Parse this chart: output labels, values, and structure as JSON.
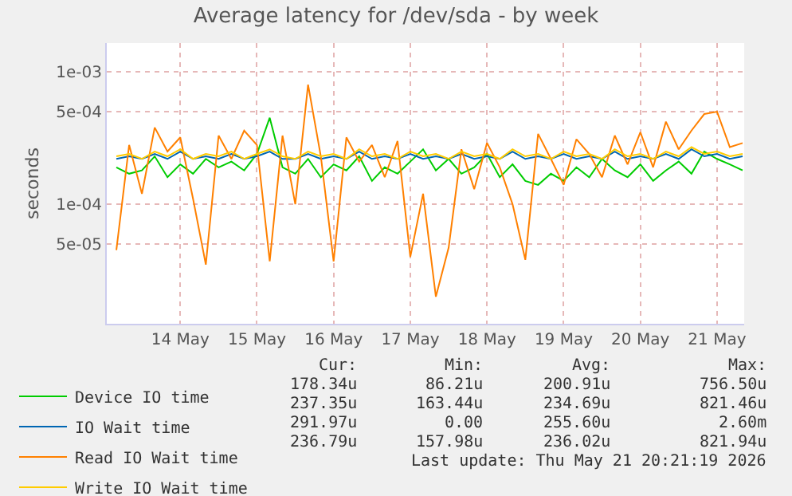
{
  "chart_data": {
    "type": "line",
    "title": "Average latency for /dev/sda - by week",
    "ylabel": "seconds",
    "x": [
      "2026-05-13T16:00",
      "2026-05-13T20:00",
      "2026-05-14T00:00",
      "2026-05-14T04:00",
      "2026-05-14T08:00",
      "2026-05-14T12:00",
      "2026-05-14T16:00",
      "2026-05-14T20:00",
      "2026-05-15T00:00",
      "2026-05-15T04:00",
      "2026-05-15T08:00",
      "2026-05-15T12:00",
      "2026-05-15T16:00",
      "2026-05-15T20:00",
      "2026-05-16T00:00",
      "2026-05-16T04:00",
      "2026-05-16T08:00",
      "2026-05-16T12:00",
      "2026-05-16T16:00",
      "2026-05-16T20:00",
      "2026-05-17T00:00",
      "2026-05-17T04:00",
      "2026-05-17T08:00",
      "2026-05-17T12:00",
      "2026-05-17T16:00",
      "2026-05-17T20:00",
      "2026-05-18T00:00",
      "2026-05-18T04:00",
      "2026-05-18T08:00",
      "2026-05-18T12:00",
      "2026-05-18T16:00",
      "2026-05-18T20:00",
      "2026-05-19T00:00",
      "2026-05-19T04:00",
      "2026-05-19T08:00",
      "2026-05-19T12:00",
      "2026-05-19T16:00",
      "2026-05-19T20:00",
      "2026-05-20T00:00",
      "2026-05-20T04:00",
      "2026-05-20T08:00",
      "2026-05-20T12:00",
      "2026-05-20T16:00",
      "2026-05-20T20:00",
      "2026-05-21T00:00",
      "2026-05-21T04:00",
      "2026-05-21T08:00",
      "2026-05-21T12:00",
      "2026-05-21T16:00",
      "2026-05-21T20:00"
    ],
    "series": [
      {
        "name": "Device IO time",
        "color": "#00cc00",
        "values": [
          0.00019,
          0.00017,
          0.00018,
          0.00023,
          0.00016,
          0.0002,
          0.00017,
          0.00022,
          0.00019,
          0.00021,
          0.00018,
          0.00024,
          0.00045,
          0.00019,
          0.00017,
          0.00022,
          0.00016,
          0.0002,
          0.00018,
          0.00023,
          0.00015,
          0.00019,
          0.00017,
          0.00021,
          0.00026,
          0.00018,
          0.00022,
          0.00017,
          0.00019,
          0.00024,
          0.00016,
          0.0002,
          0.00015,
          0.00014,
          0.00017,
          0.00015,
          0.00019,
          0.00016,
          0.00022,
          0.00018,
          0.00016,
          0.0002,
          0.00015,
          0.00018,
          0.00021,
          0.00017,
          0.00025,
          0.00022,
          0.0002,
          0.00018
        ]
      },
      {
        "name": "IO Wait time",
        "color": "#0066b3",
        "values": [
          0.00022,
          0.00023,
          0.00022,
          0.00024,
          0.00022,
          0.00025,
          0.00022,
          0.00023,
          0.00022,
          0.00024,
          0.00022,
          0.00023,
          0.00025,
          0.00022,
          0.00022,
          0.00024,
          0.00022,
          0.00023,
          0.00022,
          0.00025,
          0.00022,
          0.00023,
          0.00022,
          0.00024,
          0.00022,
          0.00023,
          0.00022,
          0.00024,
          0.00022,
          0.00023,
          0.00022,
          0.00025,
          0.00022,
          0.00023,
          0.00022,
          0.00024,
          0.00022,
          0.00023,
          0.00022,
          0.00025,
          0.00022,
          0.00023,
          0.00022,
          0.00024,
          0.00022,
          0.00026,
          0.00023,
          0.00024,
          0.00022,
          0.00023
        ]
      },
      {
        "name": "Read IO Wait time",
        "color": "#ff8000",
        "values": [
          4.5e-05,
          0.00028,
          0.00012,
          0.00038,
          0.00025,
          0.00032,
          0.00011,
          3.5e-05,
          0.00033,
          0.00022,
          0.00036,
          0.00028,
          3.7e-05,
          0.00033,
          0.0001,
          0.0008,
          0.00023,
          3.7e-05,
          0.00032,
          0.00021,
          0.00028,
          0.00016,
          0.0003,
          4e-05,
          0.00012,
          2e-05,
          4.7e-05,
          0.00026,
          0.00013,
          0.00029,
          0.00019,
          0.0001,
          3.8e-05,
          0.00034,
          0.00022,
          0.00014,
          0.00031,
          0.00024,
          0.00016,
          0.00033,
          0.0002,
          0.00035,
          0.00019,
          0.00042,
          0.00026,
          0.00036,
          0.00048,
          0.0005,
          0.00027,
          0.00029
        ]
      },
      {
        "name": "Write IO Wait time",
        "color": "#ffcc00",
        "values": [
          0.00023,
          0.00024,
          0.00022,
          0.00025,
          0.00023,
          0.00026,
          0.00022,
          0.00024,
          0.00023,
          0.00025,
          0.00022,
          0.00024,
          0.00026,
          0.00023,
          0.00022,
          0.00025,
          0.00023,
          0.00024,
          0.00022,
          0.00026,
          0.00023,
          0.00024,
          0.00022,
          0.00025,
          0.00023,
          0.00024,
          0.00022,
          0.00025,
          0.00023,
          0.00024,
          0.00022,
          0.00026,
          0.00023,
          0.00024,
          0.00022,
          0.00025,
          0.00023,
          0.00024,
          0.00022,
          0.00026,
          0.00023,
          0.00024,
          0.00022,
          0.00025,
          0.00023,
          0.00027,
          0.00024,
          0.00025,
          0.00023,
          0.00024
        ]
      }
    ],
    "log": true,
    "xlim": [
      "2026-05-13T13:00",
      "2026-05-21T20:30"
    ],
    "xticks": [
      {
        "value": "2026-05-14T12:00",
        "label": "14 May"
      },
      {
        "value": "2026-05-15T12:00",
        "label": "15 May"
      },
      {
        "value": "2026-05-16T12:00",
        "label": "16 May"
      },
      {
        "value": "2026-05-17T12:00",
        "label": "17 May"
      },
      {
        "value": "2026-05-18T12:00",
        "label": "18 May"
      },
      {
        "value": "2026-05-19T12:00",
        "label": "19 May"
      },
      {
        "value": "2026-05-20T12:00",
        "label": "20 May"
      },
      {
        "value": "2026-05-21T12:00",
        "label": "21 May"
      }
    ],
    "ylim": [
      1.25e-05,
      0.00165
    ],
    "yticks": [
      {
        "value": 5e-05,
        "label": "5e-05"
      },
      {
        "value": 0.0001,
        "label": "1e-04"
      },
      {
        "value": 0.0005,
        "label": "5e-04"
      },
      {
        "value": 0.001,
        "label": "1e-03"
      }
    ],
    "grid": true,
    "legend": "bottom left",
    "annotations": [
      "Cur:",
      "Min:",
      "Avg:",
      "Max:",
      "178.34u",
      "86.21u",
      "200.91u",
      "756.50u",
      "237.35u",
      "163.44u",
      "234.69u",
      "821.46u",
      "291.97u",
      "0.00",
      "255.60u",
      "2.60m",
      "236.79u",
      "157.98u",
      "236.02u",
      "821.94u",
      "Last update: Thu May 21 20:21:19 2026"
    ]
  }
}
